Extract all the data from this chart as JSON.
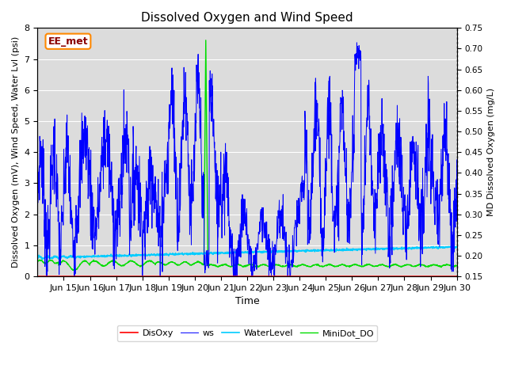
{
  "title": "Dissolved Oxygen and Wind Speed",
  "ylabel_left": "Dissolved Oxygen (mV), Wind Speed, Water Lvl (psi)",
  "ylabel_right": "MD Dissolved Oxygen (mg/L)",
  "xlabel": "Time",
  "xlim_days": [
    14,
    30
  ],
  "ylim_left": [
    0.0,
    8.0
  ],
  "ylim_right": [
    0.15,
    0.75
  ],
  "xtick_positions": [
    15,
    16,
    17,
    18,
    19,
    20,
    21,
    22,
    23,
    24,
    25,
    26,
    27,
    28,
    29,
    30
  ],
  "xtick_labels": [
    "Jun 15",
    "Jun 16",
    "Jun 17",
    "Jun 18",
    "Jun 19",
    "Jun 20",
    "Jun 21",
    "Jun 22",
    "Jun 23",
    "Jun 24",
    "Jun 25",
    "Jun 26",
    "Jun 27",
    "Jun 28",
    "Jun 29",
    "Jun 30"
  ],
  "legend_labels": [
    "DisOxy",
    "ws",
    "WaterLevel",
    "MiniDot_DO"
  ],
  "legend_colors": [
    "#ff0000",
    "#0000ff",
    "#00ccff",
    "#00cc00"
  ],
  "annotation_text": "EE_met",
  "background_color": "#dcdcdc",
  "line_color_disoxy": "#ff0000",
  "line_color_ws": "#0000ff",
  "line_color_waterlevel": "#00ccff",
  "line_color_minidot": "#00dd00",
  "yticks_left": [
    0.0,
    1.0,
    2.0,
    3.0,
    4.0,
    5.0,
    6.0,
    7.0,
    8.0
  ],
  "yticks_right": [
    0.15,
    0.2,
    0.25,
    0.3,
    0.35,
    0.4,
    0.45,
    0.5,
    0.55,
    0.6,
    0.65,
    0.7,
    0.75
  ]
}
